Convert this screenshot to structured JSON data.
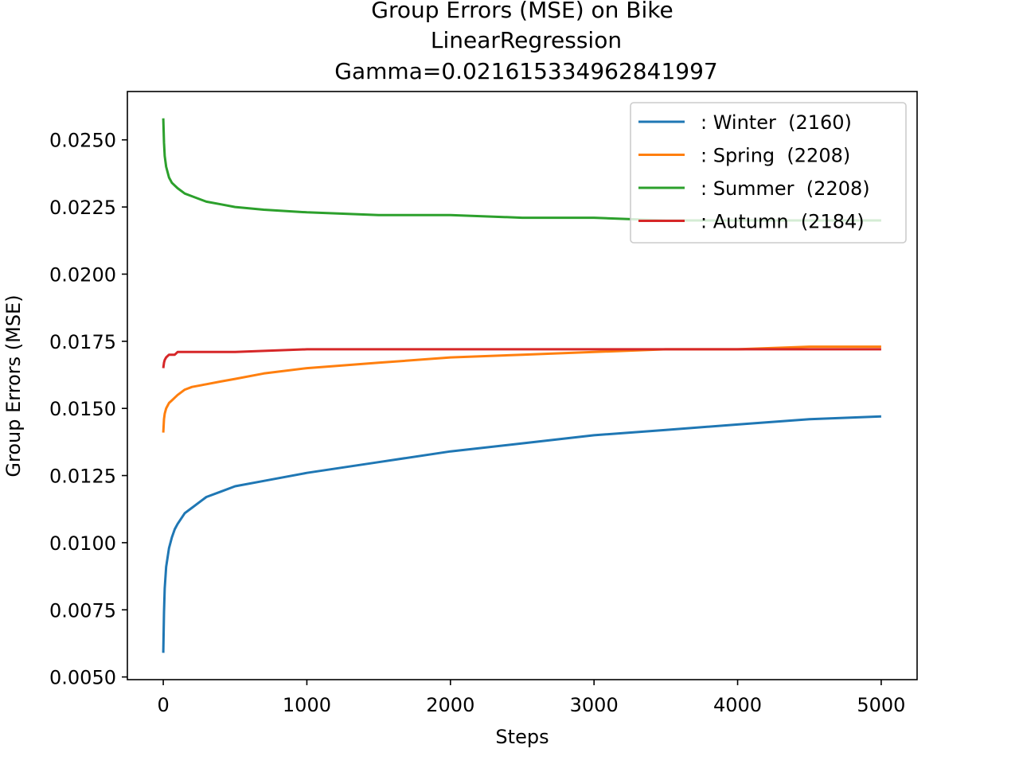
{
  "chart_data": {
    "type": "line",
    "title_lines": [
      "Group Errors (MSE) on Bike",
      "LinearRegression",
      "Gamma=0.021615334962841997"
    ],
    "xlabel": "Steps",
    "ylabel": "Group Errors (MSE)",
    "xlim": [
      -250,
      5250
    ],
    "ylim": [
      0.0049,
      0.0268
    ],
    "x_ticks": [
      0,
      1000,
      2000,
      3000,
      4000,
      5000
    ],
    "x_tick_labels": [
      "0",
      "1000",
      "2000",
      "3000",
      "4000",
      "5000"
    ],
    "y_ticks": [
      0.005,
      0.0075,
      0.01,
      0.0125,
      0.015,
      0.0175,
      0.02,
      0.0225,
      0.025
    ],
    "y_tick_labels": [
      "0.0050",
      "0.0075",
      "0.0100",
      "0.0125",
      "0.0150",
      "0.0175",
      "0.0200",
      "0.0225",
      "0.0250"
    ],
    "grid": false,
    "legend_position": "top-right",
    "series": [
      {
        "name": ": Winter  (2160)",
        "color": "#1f77b4",
        "x": [
          0,
          5,
          10,
          20,
          40,
          60,
          80,
          100,
          150,
          200,
          300,
          400,
          500,
          700,
          1000,
          1500,
          2000,
          2500,
          3000,
          3500,
          4000,
          4500,
          5000
        ],
        "values": [
          0.0059,
          0.0074,
          0.0083,
          0.0091,
          0.0098,
          0.0102,
          0.0105,
          0.0107,
          0.0111,
          0.0113,
          0.0117,
          0.0119,
          0.0121,
          0.0123,
          0.0126,
          0.013,
          0.0134,
          0.0137,
          0.014,
          0.0142,
          0.0144,
          0.0146,
          0.0147
        ]
      },
      {
        "name": ": Spring  (2208)",
        "color": "#ff7f0e",
        "x": [
          0,
          5,
          10,
          20,
          40,
          60,
          80,
          100,
          150,
          200,
          300,
          400,
          500,
          700,
          1000,
          1500,
          2000,
          2500,
          3000,
          3500,
          4000,
          4500,
          5000
        ],
        "values": [
          0.0141,
          0.0146,
          0.0148,
          0.015,
          0.0152,
          0.0153,
          0.0154,
          0.0155,
          0.0157,
          0.0158,
          0.0159,
          0.016,
          0.0161,
          0.0163,
          0.0165,
          0.0167,
          0.0169,
          0.017,
          0.0171,
          0.0172,
          0.0172,
          0.0173,
          0.0173
        ]
      },
      {
        "name": ": Summer  (2208)",
        "color": "#2ca02c",
        "x": [
          0,
          5,
          10,
          20,
          40,
          60,
          80,
          100,
          150,
          200,
          300,
          400,
          500,
          700,
          1000,
          1500,
          2000,
          2500,
          3000,
          3500,
          4000,
          4500,
          5000
        ],
        "values": [
          0.0258,
          0.0249,
          0.0244,
          0.024,
          0.0236,
          0.0234,
          0.0233,
          0.0232,
          0.023,
          0.0229,
          0.0227,
          0.0226,
          0.0225,
          0.0224,
          0.0223,
          0.0222,
          0.0222,
          0.0221,
          0.0221,
          0.022,
          0.022,
          0.022,
          0.022
        ]
      },
      {
        "name": ": Autumn  (2184)",
        "color": "#d62728",
        "x": [
          0,
          5,
          10,
          20,
          40,
          60,
          80,
          100,
          150,
          200,
          300,
          500,
          1000,
          2000,
          3000,
          4000,
          5000
        ],
        "values": [
          0.0165,
          0.0167,
          0.0168,
          0.0169,
          0.017,
          0.017,
          0.017,
          0.0171,
          0.0171,
          0.0171,
          0.0171,
          0.0171,
          0.0172,
          0.0172,
          0.0172,
          0.0172,
          0.0172
        ]
      }
    ]
  }
}
